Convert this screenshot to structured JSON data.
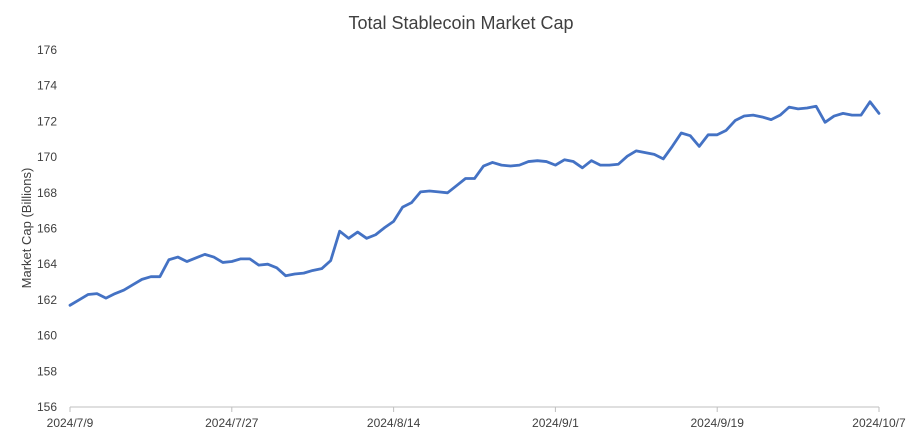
{
  "chart_data": {
    "type": "line",
    "title": "Total Stablecoin Market Cap",
    "xlabel": "",
    "ylabel": "Market Cap (Billions)",
    "ylim": [
      156,
      176
    ],
    "y_ticks": [
      156,
      158,
      160,
      162,
      164,
      166,
      168,
      170,
      172,
      174,
      176
    ],
    "x_range": [
      "2024/7/9",
      "2024/10/7"
    ],
    "x_tick_labels": [
      "2024/7/9",
      "2024/7/27",
      "2024/8/14",
      "2024/9/1",
      "2024/9/19",
      "2024/10/7"
    ],
    "grid": false,
    "legend": "none",
    "line_color": "#4472C4",
    "series": [
      {
        "x": [
          "2024/7/9",
          "2024/7/10",
          "2024/7/11",
          "2024/7/12",
          "2024/7/13",
          "2024/7/14",
          "2024/7/15",
          "2024/7/16",
          "2024/7/17",
          "2024/7/18",
          "2024/7/19",
          "2024/7/20",
          "2024/7/21",
          "2024/7/22",
          "2024/7/23",
          "2024/7/24",
          "2024/7/25",
          "2024/7/26",
          "2024/7/27",
          "2024/7/28",
          "2024/7/29",
          "2024/7/30",
          "2024/7/31",
          "2024/8/1",
          "2024/8/2",
          "2024/8/3",
          "2024/8/4",
          "2024/8/5",
          "2024/8/6",
          "2024/8/7",
          "2024/8/8",
          "2024/8/9",
          "2024/8/10",
          "2024/8/11",
          "2024/8/12",
          "2024/8/13",
          "2024/8/14",
          "2024/8/15",
          "2024/8/16",
          "2024/8/17",
          "2024/8/18",
          "2024/8/19",
          "2024/8/20",
          "2024/8/21",
          "2024/8/22",
          "2024/8/23",
          "2024/8/24",
          "2024/8/25",
          "2024/8/26",
          "2024/8/27",
          "2024/8/28",
          "2024/8/29",
          "2024/8/30",
          "2024/8/31",
          "2024/9/1",
          "2024/9/2",
          "2024/9/3",
          "2024/9/4",
          "2024/9/5",
          "2024/9/6",
          "2024/9/7",
          "2024/9/8",
          "2024/9/9",
          "2024/9/10",
          "2024/9/11",
          "2024/9/12",
          "2024/9/13",
          "2024/9/14",
          "2024/9/15",
          "2024/9/16",
          "2024/9/17",
          "2024/9/18",
          "2024/9/19",
          "2024/9/20",
          "2024/9/21",
          "2024/9/22",
          "2024/9/23",
          "2024/9/24",
          "2024/9/25",
          "2024/9/26",
          "2024/9/27",
          "2024/9/28",
          "2024/9/29",
          "2024/9/30",
          "2024/10/1",
          "2024/10/2",
          "2024/10/3",
          "2024/10/4",
          "2024/10/5",
          "2024/10/6",
          "2024/10/7"
        ],
        "values": [
          161.7,
          162.0,
          162.3,
          162.35,
          162.1,
          162.35,
          162.55,
          162.85,
          163.15,
          163.3,
          163.3,
          164.25,
          164.4,
          164.15,
          164.35,
          164.55,
          164.4,
          164.1,
          164.15,
          164.3,
          164.3,
          163.95,
          164.0,
          163.8,
          163.35,
          163.45,
          163.5,
          163.65,
          163.75,
          164.2,
          165.85,
          165.45,
          165.8,
          165.45,
          165.65,
          166.05,
          166.4,
          167.2,
          167.45,
          168.05,
          168.1,
          168.05,
          168.0,
          168.4,
          168.8,
          168.8,
          169.5,
          169.7,
          169.55,
          169.5,
          169.55,
          169.75,
          169.8,
          169.75,
          169.55,
          169.85,
          169.75,
          169.4,
          169.8,
          169.55,
          169.55,
          169.6,
          170.05,
          170.35,
          170.25,
          170.15,
          169.9,
          170.6,
          171.35,
          171.2,
          170.6,
          171.25,
          171.25,
          171.5,
          172.05,
          172.3,
          172.35,
          172.25,
          172.1,
          172.35,
          172.8,
          172.7,
          172.75,
          172.85,
          171.95,
          172.3,
          172.45,
          172.35,
          172.35,
          173.1,
          172.45
        ]
      }
    ]
  }
}
